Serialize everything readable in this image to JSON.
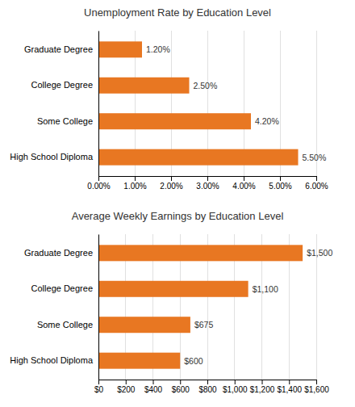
{
  "chart_data": [
    {
      "type": "bar",
      "orientation": "horizontal",
      "title": "Unemployment Rate by Education Level",
      "categories": [
        "Graduate Degree",
        "College Degree",
        "Some College",
        "High School Diploma"
      ],
      "values": [
        1.2,
        2.5,
        4.2,
        5.5
      ],
      "value_labels": [
        "1.20%",
        "2.50%",
        "4.20%",
        "5.50%"
      ],
      "data_labels": true,
      "color": "#E87722",
      "xlim": [
        0,
        6.0
      ],
      "xticks": [
        {
          "value": 0,
          "label": "0.00%"
        },
        {
          "value": 1.0,
          "label": "1.00%"
        },
        {
          "value": 2.0,
          "label": "2.00%"
        },
        {
          "value": 3.0,
          "label": "3.00%"
        },
        {
          "value": 4.0,
          "label": "4.00%"
        },
        {
          "value": 5.0,
          "label": "5.00%"
        },
        {
          "value": 6.0,
          "label": "6.00%"
        }
      ],
      "grid": true
    },
    {
      "type": "bar",
      "orientation": "horizontal",
      "title": "Average Weekly Earnings by Education Level",
      "categories": [
        "Graduate Degree",
        "College Degree",
        "Some College",
        "High School Diploma"
      ],
      "values": [
        1500,
        1100,
        675,
        600
      ],
      "value_labels": [
        "$1,500",
        "$1,100",
        "$675",
        "$600"
      ],
      "data_labels": true,
      "color": "#E87722",
      "xlim": [
        0,
        1600
      ],
      "xticks": [
        {
          "value": 0,
          "label": "$0"
        },
        {
          "value": 200,
          "label": "$200"
        },
        {
          "value": 400,
          "label": "$400"
        },
        {
          "value": 600,
          "label": "$600"
        },
        {
          "value": 800,
          "label": "$800"
        },
        {
          "value": 1000,
          "label": "$1,000"
        },
        {
          "value": 1200,
          "label": "$1,200"
        },
        {
          "value": 1400,
          "label": "$1,400"
        },
        {
          "value": 1600,
          "label": "$1,600"
        }
      ],
      "grid": true
    }
  ]
}
